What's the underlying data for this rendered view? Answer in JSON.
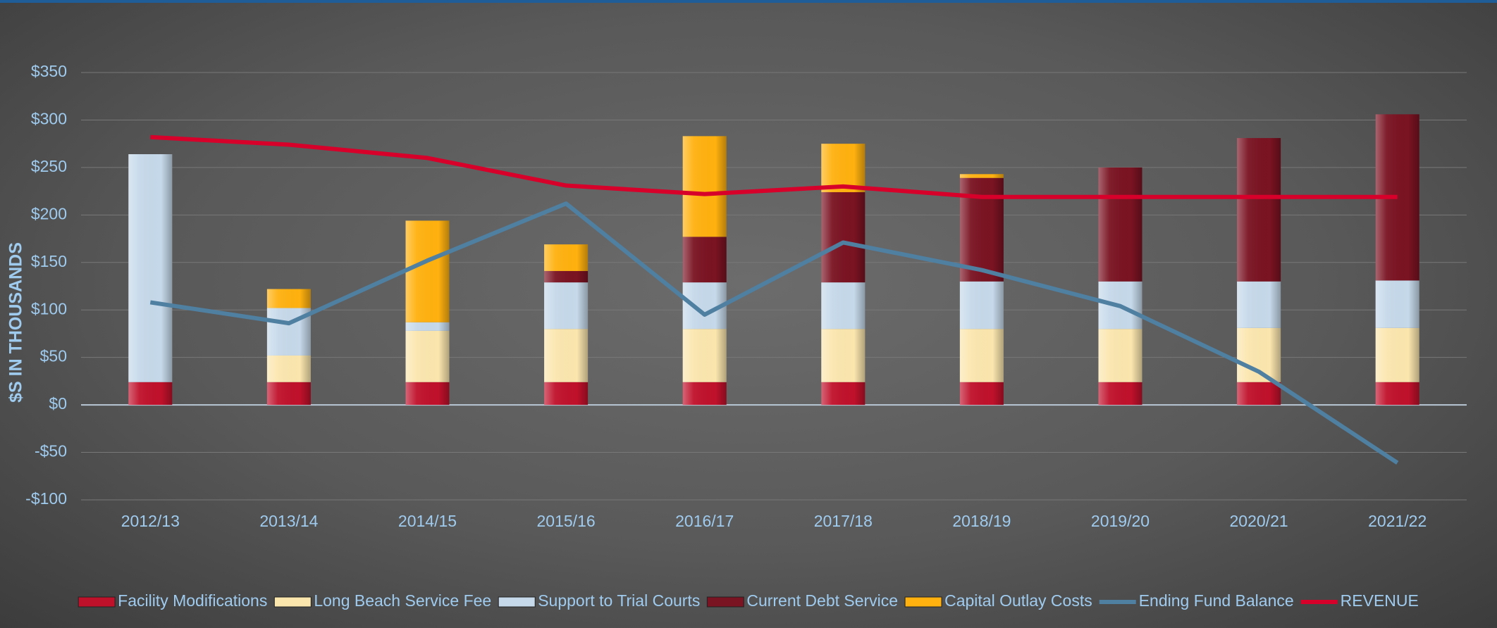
{
  "chart_data": {
    "type": "bar",
    "stacked": true,
    "y_label": "$S IN THOUSANDS",
    "categories": [
      "2012/13",
      "2013/14",
      "2014/15",
      "2015/16",
      "2016/17",
      "2017/18",
      "2018/19",
      "2019/20",
      "2020/21",
      "2021/22"
    ],
    "series": [
      {
        "name": "Facility Modifications",
        "type": "bar",
        "color": "#c0112b",
        "values": [
          24,
          24,
          24,
          24,
          24,
          24,
          24,
          24,
          24,
          24
        ]
      },
      {
        "name": "Long Beach Service Fee",
        "type": "bar",
        "color": "#fbe6ae",
        "values": [
          0,
          28,
          54,
          56,
          56,
          56,
          56,
          56,
          57,
          57
        ]
      },
      {
        "name": "Support to Trial Courts",
        "type": "bar",
        "color": "#c6d9ea",
        "values": [
          240,
          50,
          9,
          49,
          49,
          49,
          50,
          50,
          49,
          50
        ]
      },
      {
        "name": "Current Debt Service",
        "type": "bar",
        "color": "#7a1322",
        "values": [
          0,
          0,
          0,
          12,
          48,
          95,
          109,
          120,
          151,
          175
        ]
      },
      {
        "name": "Capital Outlay Costs",
        "type": "bar",
        "color": "#ffb10f",
        "values": [
          0,
          20,
          107,
          28,
          106,
          51,
          4,
          0,
          0,
          0
        ]
      },
      {
        "name": "Ending Fund Balance",
        "type": "line",
        "color": "#4f7fa1",
        "values": [
          108,
          86,
          152,
          212,
          95,
          171,
          142,
          104,
          35,
          -61
        ]
      },
      {
        "name": "REVENUE",
        "type": "line",
        "color": "#d7002b",
        "values": [
          282,
          274,
          260,
          231,
          222,
          230,
          219,
          219,
          219,
          219
        ]
      }
    ],
    "ylim": [
      -100,
      350
    ],
    "yticks": [
      {
        "value": -100,
        "label": "-$100"
      },
      {
        "value": -50,
        "label": "-$50"
      },
      {
        "value": 0,
        "label": "$0"
      },
      {
        "value": 50,
        "label": "$50"
      },
      {
        "value": 100,
        "label": "$100"
      },
      {
        "value": 150,
        "label": "$150"
      },
      {
        "value": 200,
        "label": "$200"
      },
      {
        "value": 250,
        "label": "$250"
      },
      {
        "value": 300,
        "label": "$300"
      },
      {
        "value": 350,
        "label": "$350"
      }
    ],
    "grid": true,
    "legend": "bottom"
  }
}
